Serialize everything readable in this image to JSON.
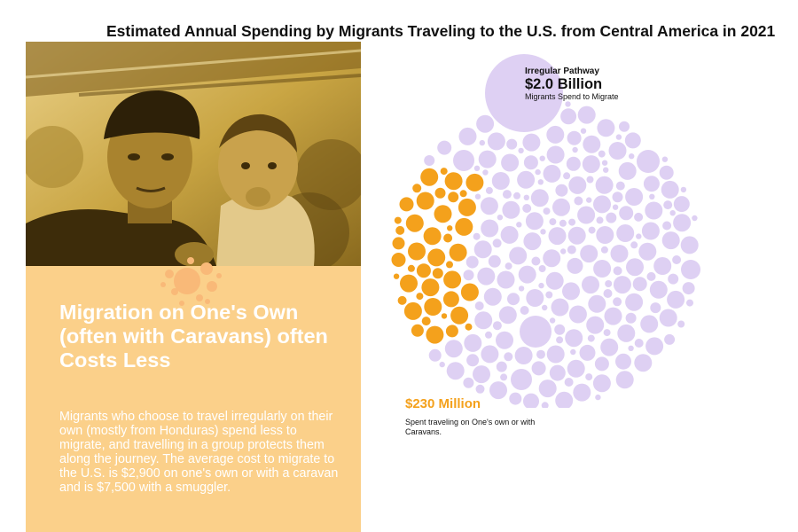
{
  "page": {
    "title": "Estimated Annual Spending by Migrants Traveling to the U.S. from Central America in 2021"
  },
  "left_panel": {
    "photo_subject": "man-holding-child-photo",
    "heading": "Migration on One's Own (often with Caravans) often Costs Less",
    "body": "Migrants who choose to travel irregularly on their own (mostly from Honduras) spend less to migrate, and travelling in a group protects them along the journey. The average cost to migrate to the U.S. is $2,900 on one's own or with a caravan and is $7,500 with a smuggler.",
    "background_color": "#fbd08a",
    "photo_tint": "#c9a543"
  },
  "chart_data": {
    "type": "bubble-pack",
    "title": "Estimated Annual Spending by Migrants Traveling to the U.S. from Central America in 2021",
    "series": [
      {
        "name": "Irregular Pathway",
        "value_label": "$2.0 Billion",
        "caption": "Migrants Spend to Migrate",
        "value_usd": 2000000000,
        "color": "#ded0f3"
      },
      {
        "name": "On one's own or with Caravans",
        "value_label": "$230 Million",
        "caption": "Spent traveling on One's own or with Caravans.",
        "value_usd": 230000000,
        "color": "#f4a11c"
      }
    ],
    "legend": "none"
  }
}
